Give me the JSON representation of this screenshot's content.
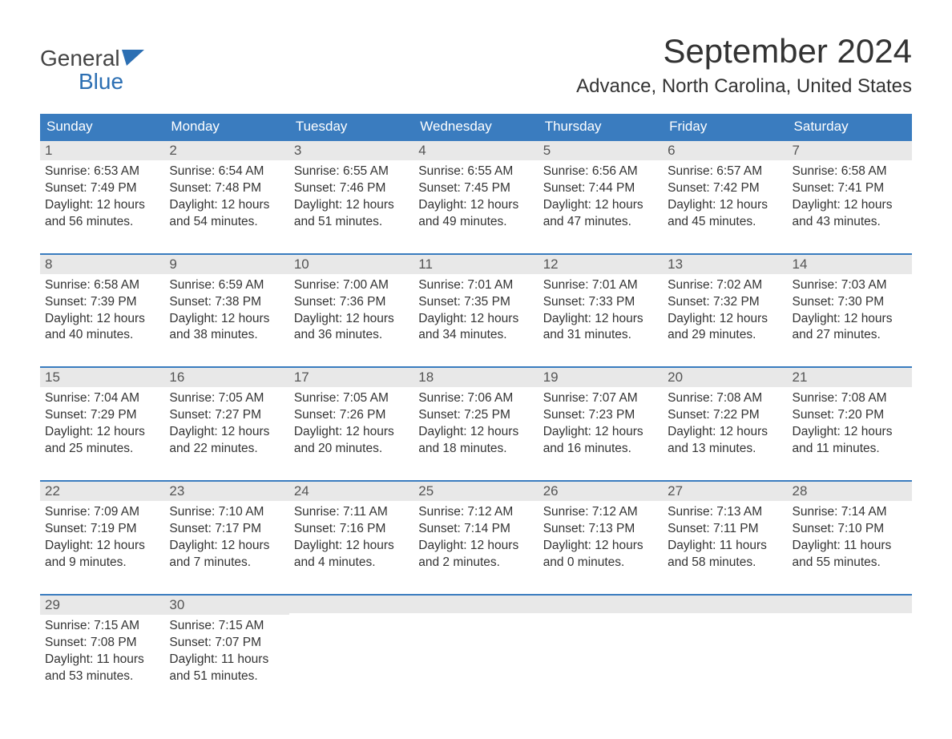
{
  "logo": {
    "top": "General",
    "bottom": "Blue"
  },
  "title": "September 2024",
  "location": "Advance, North Carolina, United States",
  "weekdays": [
    "Sunday",
    "Monday",
    "Tuesday",
    "Wednesday",
    "Thursday",
    "Friday",
    "Saturday"
  ],
  "colors": {
    "header_bg": "#3a7cbf",
    "header_text": "#ffffff",
    "day_bar_bg": "#e8e8e8",
    "day_bar_border": "#3a7cbf",
    "text": "#333333",
    "logo_accent": "#2c6fb3"
  },
  "weeks": [
    [
      {
        "n": "1",
        "sunrise": "Sunrise: 6:53 AM",
        "sunset": "Sunset: 7:49 PM",
        "d1": "Daylight: 12 hours",
        "d2": "and 56 minutes."
      },
      {
        "n": "2",
        "sunrise": "Sunrise: 6:54 AM",
        "sunset": "Sunset: 7:48 PM",
        "d1": "Daylight: 12 hours",
        "d2": "and 54 minutes."
      },
      {
        "n": "3",
        "sunrise": "Sunrise: 6:55 AM",
        "sunset": "Sunset: 7:46 PM",
        "d1": "Daylight: 12 hours",
        "d2": "and 51 minutes."
      },
      {
        "n": "4",
        "sunrise": "Sunrise: 6:55 AM",
        "sunset": "Sunset: 7:45 PM",
        "d1": "Daylight: 12 hours",
        "d2": "and 49 minutes."
      },
      {
        "n": "5",
        "sunrise": "Sunrise: 6:56 AM",
        "sunset": "Sunset: 7:44 PM",
        "d1": "Daylight: 12 hours",
        "d2": "and 47 minutes."
      },
      {
        "n": "6",
        "sunrise": "Sunrise: 6:57 AM",
        "sunset": "Sunset: 7:42 PM",
        "d1": "Daylight: 12 hours",
        "d2": "and 45 minutes."
      },
      {
        "n": "7",
        "sunrise": "Sunrise: 6:58 AM",
        "sunset": "Sunset: 7:41 PM",
        "d1": "Daylight: 12 hours",
        "d2": "and 43 minutes."
      }
    ],
    [
      {
        "n": "8",
        "sunrise": "Sunrise: 6:58 AM",
        "sunset": "Sunset: 7:39 PM",
        "d1": "Daylight: 12 hours",
        "d2": "and 40 minutes."
      },
      {
        "n": "9",
        "sunrise": "Sunrise: 6:59 AM",
        "sunset": "Sunset: 7:38 PM",
        "d1": "Daylight: 12 hours",
        "d2": "and 38 minutes."
      },
      {
        "n": "10",
        "sunrise": "Sunrise: 7:00 AM",
        "sunset": "Sunset: 7:36 PM",
        "d1": "Daylight: 12 hours",
        "d2": "and 36 minutes."
      },
      {
        "n": "11",
        "sunrise": "Sunrise: 7:01 AM",
        "sunset": "Sunset: 7:35 PM",
        "d1": "Daylight: 12 hours",
        "d2": "and 34 minutes."
      },
      {
        "n": "12",
        "sunrise": "Sunrise: 7:01 AM",
        "sunset": "Sunset: 7:33 PM",
        "d1": "Daylight: 12 hours",
        "d2": "and 31 minutes."
      },
      {
        "n": "13",
        "sunrise": "Sunrise: 7:02 AM",
        "sunset": "Sunset: 7:32 PM",
        "d1": "Daylight: 12 hours",
        "d2": "and 29 minutes."
      },
      {
        "n": "14",
        "sunrise": "Sunrise: 7:03 AM",
        "sunset": "Sunset: 7:30 PM",
        "d1": "Daylight: 12 hours",
        "d2": "and 27 minutes."
      }
    ],
    [
      {
        "n": "15",
        "sunrise": "Sunrise: 7:04 AM",
        "sunset": "Sunset: 7:29 PM",
        "d1": "Daylight: 12 hours",
        "d2": "and 25 minutes."
      },
      {
        "n": "16",
        "sunrise": "Sunrise: 7:05 AM",
        "sunset": "Sunset: 7:27 PM",
        "d1": "Daylight: 12 hours",
        "d2": "and 22 minutes."
      },
      {
        "n": "17",
        "sunrise": "Sunrise: 7:05 AM",
        "sunset": "Sunset: 7:26 PM",
        "d1": "Daylight: 12 hours",
        "d2": "and 20 minutes."
      },
      {
        "n": "18",
        "sunrise": "Sunrise: 7:06 AM",
        "sunset": "Sunset: 7:25 PM",
        "d1": "Daylight: 12 hours",
        "d2": "and 18 minutes."
      },
      {
        "n": "19",
        "sunrise": "Sunrise: 7:07 AM",
        "sunset": "Sunset: 7:23 PM",
        "d1": "Daylight: 12 hours",
        "d2": "and 16 minutes."
      },
      {
        "n": "20",
        "sunrise": "Sunrise: 7:08 AM",
        "sunset": "Sunset: 7:22 PM",
        "d1": "Daylight: 12 hours",
        "d2": "and 13 minutes."
      },
      {
        "n": "21",
        "sunrise": "Sunrise: 7:08 AM",
        "sunset": "Sunset: 7:20 PM",
        "d1": "Daylight: 12 hours",
        "d2": "and 11 minutes."
      }
    ],
    [
      {
        "n": "22",
        "sunrise": "Sunrise: 7:09 AM",
        "sunset": "Sunset: 7:19 PM",
        "d1": "Daylight: 12 hours",
        "d2": "and 9 minutes."
      },
      {
        "n": "23",
        "sunrise": "Sunrise: 7:10 AM",
        "sunset": "Sunset: 7:17 PM",
        "d1": "Daylight: 12 hours",
        "d2": "and 7 minutes."
      },
      {
        "n": "24",
        "sunrise": "Sunrise: 7:11 AM",
        "sunset": "Sunset: 7:16 PM",
        "d1": "Daylight: 12 hours",
        "d2": "and 4 minutes."
      },
      {
        "n": "25",
        "sunrise": "Sunrise: 7:12 AM",
        "sunset": "Sunset: 7:14 PM",
        "d1": "Daylight: 12 hours",
        "d2": "and 2 minutes."
      },
      {
        "n": "26",
        "sunrise": "Sunrise: 7:12 AM",
        "sunset": "Sunset: 7:13 PM",
        "d1": "Daylight: 12 hours",
        "d2": "and 0 minutes."
      },
      {
        "n": "27",
        "sunrise": "Sunrise: 7:13 AM",
        "sunset": "Sunset: 7:11 PM",
        "d1": "Daylight: 11 hours",
        "d2": "and 58 minutes."
      },
      {
        "n": "28",
        "sunrise": "Sunrise: 7:14 AM",
        "sunset": "Sunset: 7:10 PM",
        "d1": "Daylight: 11 hours",
        "d2": "and 55 minutes."
      }
    ],
    [
      {
        "n": "29",
        "sunrise": "Sunrise: 7:15 AM",
        "sunset": "Sunset: 7:08 PM",
        "d1": "Daylight: 11 hours",
        "d2": "and 53 minutes."
      },
      {
        "n": "30",
        "sunrise": "Sunrise: 7:15 AM",
        "sunset": "Sunset: 7:07 PM",
        "d1": "Daylight: 11 hours",
        "d2": "and 51 minutes."
      },
      {
        "empty": true
      },
      {
        "empty": true
      },
      {
        "empty": true
      },
      {
        "empty": true
      },
      {
        "empty": true
      }
    ]
  ]
}
